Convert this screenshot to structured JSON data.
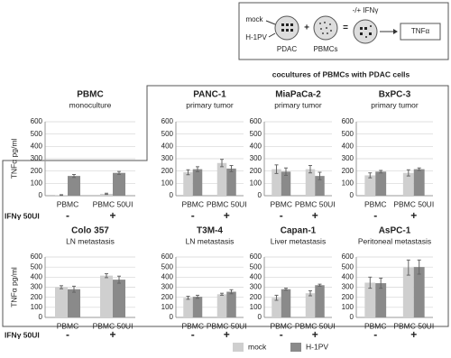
{
  "diagram": {
    "mock": "mock",
    "h1pv": "H-1PV",
    "pdac": "PDAC",
    "plus": "+",
    "pbmcs": "PBMCs",
    "equals": "=",
    "ifn": "-/+ IFNγ",
    "tnf": "TNFα"
  },
  "coculture_heading": "cocultures of PBMCs with PDAC cells",
  "row_labels": [
    "IFNγ 50UI",
    "IFNγ 50UI"
  ],
  "chart_data": [
    {
      "type": "bar",
      "title": "PBMC",
      "subtitle": "monoculture",
      "ylabel": "TNFα pg/ml",
      "categories": [
        "PBMC",
        "PBMC 50UI"
      ],
      "treatment": [
        "-",
        "+"
      ],
      "ylim": [
        0,
        600
      ],
      "yticks": [
        0,
        100,
        200,
        300,
        400,
        500,
        600
      ],
      "grid": true,
      "series": [
        {
          "name": "mock",
          "color": "#cfcfcf",
          "values": [
            5,
            15
          ],
          "errors": [
            3,
            5
          ]
        },
        {
          "name": "H-1PV",
          "color": "#8a8a8a",
          "values": [
            160,
            185
          ],
          "errors": [
            12,
            12
          ]
        }
      ]
    },
    {
      "type": "bar",
      "title": "PANC-1",
      "subtitle": "primary tumor",
      "categories": [
        "PBMC",
        "PBMC 50UI"
      ],
      "treatment": [
        "-",
        "+"
      ],
      "ylim": [
        0,
        600
      ],
      "yticks": [
        0,
        100,
        200,
        300,
        400,
        500,
        600
      ],
      "grid": true,
      "series": [
        {
          "name": "mock",
          "color": "#cfcfcf",
          "values": [
            190,
            265
          ],
          "errors": [
            20,
            30
          ]
        },
        {
          "name": "H-1PV",
          "color": "#8a8a8a",
          "values": [
            215,
            220
          ],
          "errors": [
            20,
            25
          ]
        }
      ]
    },
    {
      "type": "bar",
      "title": "MiaPaCa-2",
      "subtitle": "primary tumor",
      "categories": [
        "PBMC",
        "PBMC 50UI"
      ],
      "treatment": [
        "-",
        "+"
      ],
      "ylim": [
        0,
        600
      ],
      "yticks": [
        0,
        100,
        200,
        300,
        400,
        500,
        600
      ],
      "grid": true,
      "series": [
        {
          "name": "mock",
          "color": "#cfcfcf",
          "values": [
            215,
            215
          ],
          "errors": [
            35,
            30
          ]
        },
        {
          "name": "H-1PV",
          "color": "#8a8a8a",
          "values": [
            195,
            160
          ],
          "errors": [
            30,
            30
          ]
        }
      ]
    },
    {
      "type": "bar",
      "title": "BxPC-3",
      "subtitle": "primary tumor",
      "categories": [
        "PBMC",
        "PBMC 50UI"
      ],
      "treatment": [
        "-",
        "+"
      ],
      "ylim": [
        0,
        600
      ],
      "yticks": [
        0,
        100,
        200,
        300,
        400,
        500,
        600
      ],
      "grid": true,
      "series": [
        {
          "name": "mock",
          "color": "#cfcfcf",
          "values": [
            165,
            185
          ],
          "errors": [
            20,
            25
          ]
        },
        {
          "name": "H-1PV",
          "color": "#8a8a8a",
          "values": [
            195,
            215
          ],
          "errors": [
            10,
            10
          ]
        }
      ]
    },
    {
      "type": "bar",
      "title": "Colo 357",
      "subtitle": "LN metastasis",
      "ylabel": "TNFα pg/ml",
      "categories": [
        "PBMC",
        "PBMC 50UI"
      ],
      "treatment": [
        "-",
        "+"
      ],
      "ylim": [
        0,
        600
      ],
      "yticks": [
        0,
        100,
        200,
        300,
        400,
        500,
        600
      ],
      "grid": true,
      "series": [
        {
          "name": "mock",
          "color": "#cfcfcf",
          "values": [
            300,
            415
          ],
          "errors": [
            15,
            20
          ]
        },
        {
          "name": "H-1PV",
          "color": "#8a8a8a",
          "values": [
            280,
            375
          ],
          "errors": [
            30,
            35
          ]
        }
      ]
    },
    {
      "type": "bar",
      "title": "T3M-4",
      "subtitle": "LN metastasis",
      "categories": [
        "PBMC",
        "PBMC 50UI"
      ],
      "treatment": [
        "-",
        "+"
      ],
      "ylim": [
        0,
        600
      ],
      "yticks": [
        0,
        100,
        200,
        300,
        400,
        500,
        600
      ],
      "grid": true,
      "series": [
        {
          "name": "mock",
          "color": "#cfcfcf",
          "values": [
            195,
            230
          ],
          "errors": [
            15,
            10
          ]
        },
        {
          "name": "H-1PV",
          "color": "#8a8a8a",
          "values": [
            205,
            255
          ],
          "errors": [
            15,
            20
          ]
        }
      ]
    },
    {
      "type": "bar",
      "title": "Capan-1",
      "subtitle": "Liver metastasis",
      "categories": [
        "PBMC",
        "PBMC 50UI"
      ],
      "treatment": [
        "-",
        "+"
      ],
      "ylim": [
        0,
        600
      ],
      "yticks": [
        0,
        100,
        200,
        300,
        400,
        500,
        600
      ],
      "grid": true,
      "series": [
        {
          "name": "mock",
          "color": "#cfcfcf",
          "values": [
            195,
            240
          ],
          "errors": [
            25,
            25
          ]
        },
        {
          "name": "H-1PV",
          "color": "#8a8a8a",
          "values": [
            280,
            320
          ],
          "errors": [
            10,
            10
          ]
        }
      ]
    },
    {
      "type": "bar",
      "title": "AsPC-1",
      "subtitle": "Peritoneal metastasis",
      "categories": [
        "PBMC",
        "PBMC 50UI"
      ],
      "treatment": [
        "-",
        "+"
      ],
      "ylim": [
        0,
        600
      ],
      "yticks": [
        0,
        100,
        200,
        300,
        400,
        500,
        600
      ],
      "grid": true,
      "series": [
        {
          "name": "mock",
          "color": "#cfcfcf",
          "values": [
            345,
            495
          ],
          "errors": [
            55,
            75
          ]
        },
        {
          "name": "H-1PV",
          "color": "#8a8a8a",
          "values": [
            340,
            500
          ],
          "errors": [
            50,
            70
          ]
        }
      ]
    }
  ]
}
